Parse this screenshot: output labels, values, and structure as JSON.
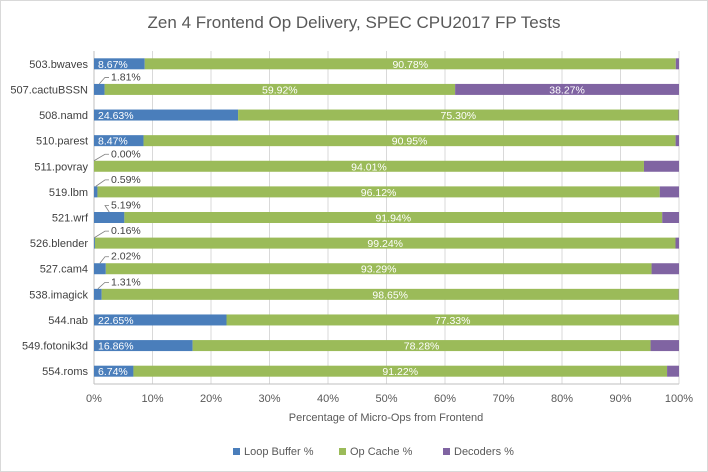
{
  "chart_data": {
    "type": "bar",
    "orientation": "horizontal",
    "stacked": true,
    "title": "Zen 4 Frontend Op Delivery, SPEC CPU2017 FP Tests",
    "xlabel": "Percentage of Micro-Ops from Frontend",
    "ylabel": "",
    "xlim": [
      0,
      100
    ],
    "x_tick_labels": [
      "0%",
      "10%",
      "20%",
      "30%",
      "40%",
      "50%",
      "60%",
      "70%",
      "80%",
      "90%",
      "100%"
    ],
    "grid": true,
    "legend_position": "bottom",
    "categories": [
      "503.bwaves",
      "507.cactuBSSN",
      "508.namd",
      "510.parest",
      "511.povray",
      "519.lbm",
      "521.wrf",
      "526.blender",
      "527.cam4",
      "538.imagick",
      "544.nab",
      "549.fotonik3d",
      "554.roms"
    ],
    "series": [
      {
        "name": "Loop Buffer %",
        "color": "#4a7ebb",
        "values": [
          8.67,
          1.81,
          24.63,
          8.47,
          0.0,
          0.59,
          5.19,
          0.16,
          2.02,
          1.31,
          22.65,
          16.86,
          6.74
        ],
        "labels": [
          "8.67%",
          "1.81%",
          "24.63%",
          "8.47%",
          "0.00%",
          "0.59%",
          "5.19%",
          "0.16%",
          "2.02%",
          "1.31%",
          "22.65%",
          "16.86%",
          "6.74%"
        ]
      },
      {
        "name": "Op Cache %",
        "color": "#9bbb59",
        "values": [
          90.78,
          59.92,
          75.3,
          90.95,
          94.01,
          96.12,
          91.94,
          99.24,
          93.29,
          98.65,
          77.33,
          78.28,
          91.22
        ],
        "labels": [
          "90.78%",
          "59.92%",
          "75.30%",
          "90.95%",
          "94.01%",
          "96.12%",
          "91.94%",
          "99.24%",
          "93.29%",
          "98.65%",
          "77.33%",
          "78.28%",
          "91.22%"
        ]
      },
      {
        "name": "Decoders %",
        "color": "#8064a2",
        "values": [
          0.55,
          38.27,
          0.07,
          0.58,
          5.99,
          3.29,
          2.87,
          0.6,
          4.69,
          0.04,
          0.02,
          4.86,
          2.04
        ],
        "labels": [
          "",
          "38.27%",
          "",
          "",
          "",
          "",
          "",
          "",
          "",
          "",
          "",
          "",
          ""
        ]
      }
    ]
  }
}
